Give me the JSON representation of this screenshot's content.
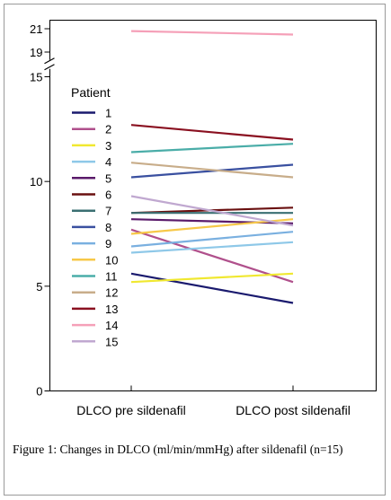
{
  "caption": "Figure 1: Changes in DLCO (ml/min/mmHg) after sildenafil (n=15)",
  "chart_data": {
    "type": "line",
    "title": "",
    "xlabel": "",
    "ylabel": "",
    "categories": [
      "DLCO pre sildenafil",
      "DLCO post sildenafil"
    ],
    "axis_break": {
      "between": [
        15,
        19
      ]
    },
    "yticks": [
      0,
      5,
      10,
      15,
      19,
      21
    ],
    "ylim": [
      0,
      21
    ],
    "legend": {
      "title": "Patient",
      "placement": "top-left"
    },
    "series": [
      {
        "name": "1",
        "color": "#1a1a6e",
        "values": [
          5.6,
          4.2
        ]
      },
      {
        "name": "2",
        "color": "#b0508c",
        "values": [
          7.7,
          5.2
        ]
      },
      {
        "name": "3",
        "color": "#f0e830",
        "values": [
          5.2,
          5.6
        ]
      },
      {
        "name": "4",
        "color": "#8ec8e8",
        "values": [
          6.6,
          7.1
        ]
      },
      {
        "name": "5",
        "color": "#5a1a6a",
        "values": [
          8.2,
          8.0
        ]
      },
      {
        "name": "6",
        "color": "#6a1010",
        "values": [
          8.5,
          8.75
        ]
      },
      {
        "name": "7",
        "color": "#3a6f72",
        "values": [
          8.5,
          8.5
        ]
      },
      {
        "name": "8",
        "color": "#3a50a0",
        "values": [
          10.2,
          10.8
        ]
      },
      {
        "name": "9",
        "color": "#7ab0e0",
        "values": [
          6.9,
          7.6
        ]
      },
      {
        "name": "10",
        "color": "#f7c848",
        "values": [
          7.5,
          8.2
        ]
      },
      {
        "name": "11",
        "color": "#4aada8",
        "values": [
          11.4,
          11.8
        ]
      },
      {
        "name": "12",
        "color": "#c8ad8a",
        "values": [
          10.9,
          10.2
        ]
      },
      {
        "name": "13",
        "color": "#8a1020",
        "values": [
          12.7,
          12.0
        ]
      },
      {
        "name": "14",
        "color": "#f5a0b8",
        "values": [
          20.8,
          20.5
        ]
      },
      {
        "name": "15",
        "color": "#c0a8d0",
        "values": [
          9.3,
          7.9
        ]
      }
    ]
  }
}
